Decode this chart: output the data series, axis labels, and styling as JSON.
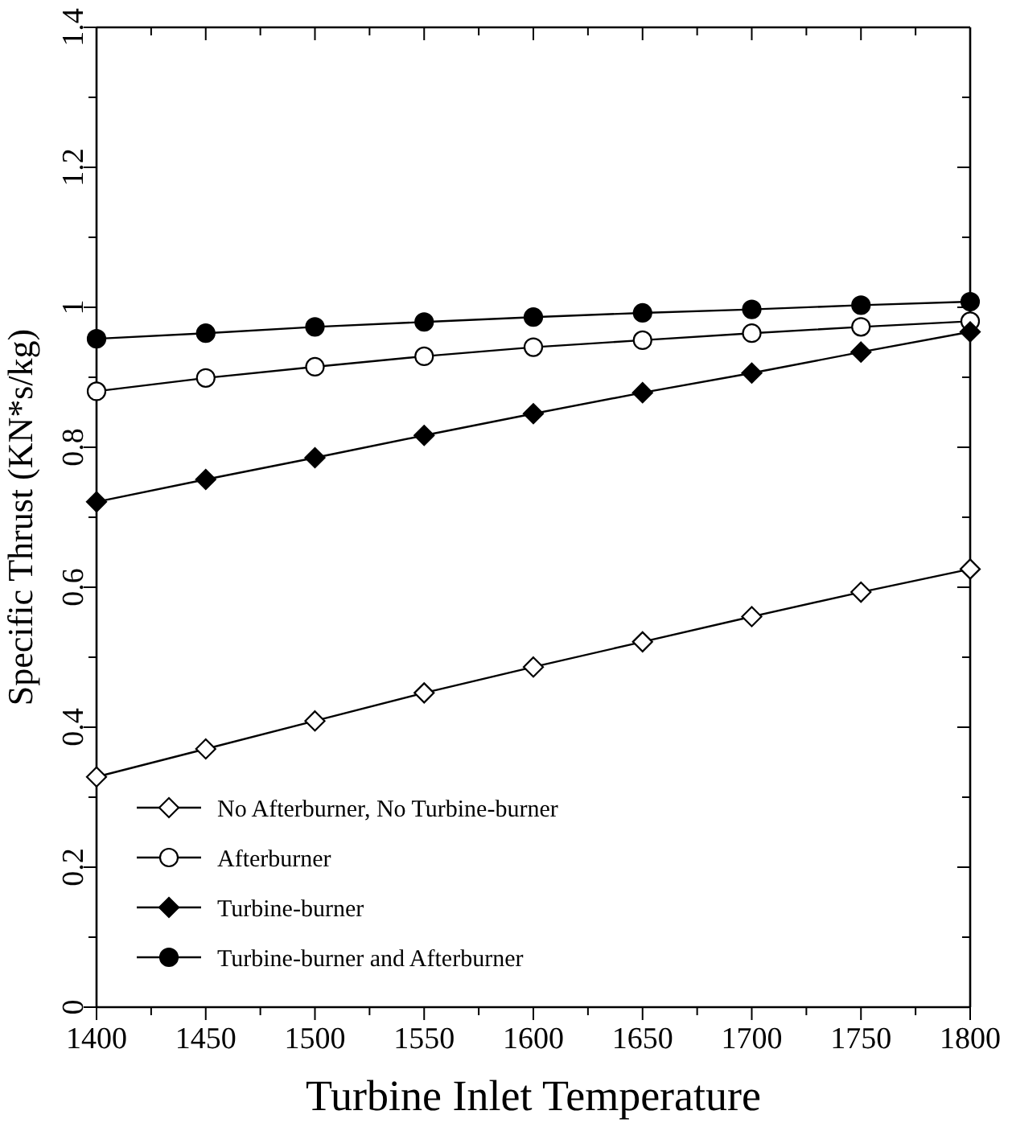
{
  "chart_data": {
    "type": "line",
    "xlabel": "Turbine Inlet Temperature",
    "ylabel": "Specific Thrust (KN*s/kg)",
    "x": [
      1400,
      1450,
      1500,
      1550,
      1600,
      1650,
      1700,
      1750,
      1800
    ],
    "xlim": [
      1400,
      1800
    ],
    "xticks": [
      1400,
      {
        "value": 1425,
        "label": null
      },
      1450,
      {
        "value": 1475,
        "label": null
      },
      1500,
      {
        "value": 1525,
        "label": null
      },
      1550,
      {
        "value": 1575,
        "label": null
      },
      1600,
      {
        "value": 1625,
        "label": null
      },
      1650,
      {
        "value": 1675,
        "label": null
      },
      1700,
      {
        "value": 1725,
        "label": null
      },
      1750,
      {
        "value": 1775,
        "label": null
      },
      1800
    ],
    "ylim": [
      0,
      1.4
    ],
    "yticks": [
      0,
      {
        "value": 0.1,
        "label": null
      },
      0.2,
      {
        "value": 0.3,
        "label": null
      },
      0.4,
      {
        "value": 0.5,
        "label": null
      },
      0.6,
      {
        "value": 0.7,
        "label": null
      },
      0.8,
      {
        "value": 0.9,
        "label": null
      },
      1,
      {
        "value": 1.1,
        "label": null
      },
      1.2,
      {
        "value": 1.3,
        "label": null
      },
      1.4
    ],
    "grid": false,
    "legend": "bottom left",
    "line_style": "solid",
    "series": [
      {
        "name": "No Afterburner, No Turbine-burner",
        "color": "#000000",
        "marker": "diamond-open",
        "values": [
          0.329,
          0.369,
          0.409,
          0.449,
          0.486,
          0.522,
          0.558,
          0.593,
          0.626
        ]
      },
      {
        "name": "Afterburner",
        "color": "#000000",
        "marker": "circle-open",
        "values": [
          0.88,
          0.899,
          0.915,
          0.93,
          0.943,
          0.953,
          0.963,
          0.972,
          0.98
        ]
      },
      {
        "name": "Turbine-burner",
        "color": "#000000",
        "marker": "diamond",
        "values": [
          0.722,
          0.754,
          0.785,
          0.817,
          0.848,
          0.878,
          0.906,
          0.936,
          0.965
        ]
      },
      {
        "name": "Turbine-burner and Afterburner",
        "color": "#000000",
        "marker": "circle",
        "values": [
          0.955,
          0.963,
          0.972,
          0.979,
          0.986,
          0.992,
          0.997,
          1.003,
          1.008
        ]
      }
    ]
  }
}
